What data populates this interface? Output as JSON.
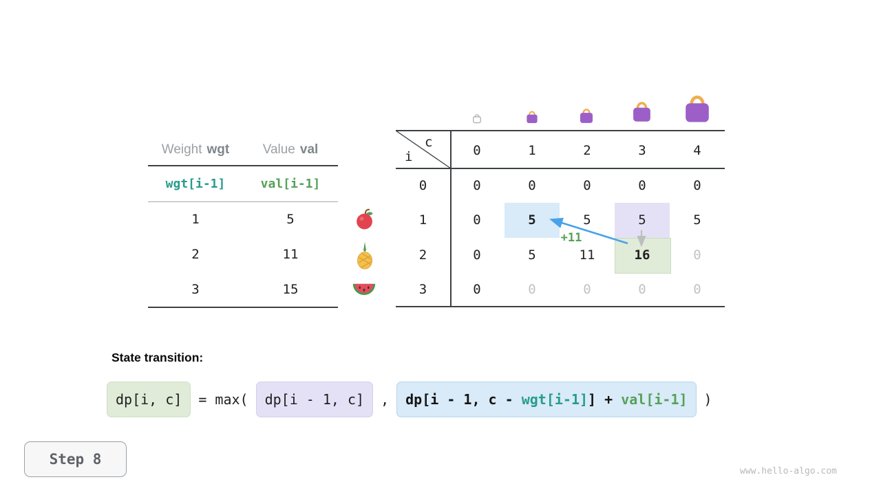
{
  "weights_table": {
    "header": {
      "weight_label": "Weight",
      "weight_code": "wgt",
      "value_label": "Value",
      "value_code": "val"
    },
    "subheader": {
      "wgt": "wgt[i-1]",
      "val": "val[i-1]"
    },
    "rows": [
      {
        "wgt": "1",
        "val": "5"
      },
      {
        "wgt": "2",
        "val": "11"
      },
      {
        "wgt": "3",
        "val": "15"
      }
    ]
  },
  "dp_table": {
    "corner": {
      "col_var": "c",
      "row_var": "i"
    },
    "col_headers": [
      "0",
      "1",
      "2",
      "3",
      "4"
    ],
    "row_headers": [
      "0",
      "1",
      "2",
      "3"
    ],
    "rows": [
      [
        {
          "v": "0"
        },
        {
          "v": "0"
        },
        {
          "v": "0"
        },
        {
          "v": "0"
        },
        {
          "v": "0"
        }
      ],
      [
        {
          "v": "0"
        },
        {
          "v": "5",
          "hl": "blue",
          "bold": true
        },
        {
          "v": "5"
        },
        {
          "v": "5",
          "hl": "purple"
        },
        {
          "v": "5"
        }
      ],
      [
        {
          "v": "0"
        },
        {
          "v": "5"
        },
        {
          "v": "11"
        },
        {
          "v": "16",
          "hl": "green",
          "bold": true
        },
        {
          "v": "0",
          "muted": true
        }
      ],
      [
        {
          "v": "0"
        },
        {
          "v": "0",
          "muted": true
        },
        {
          "v": "0",
          "muted": true
        },
        {
          "v": "0",
          "muted": true
        },
        {
          "v": "0",
          "muted": true
        }
      ]
    ],
    "transition_label": "+11",
    "row_icons": [
      "apple",
      "pineapple",
      "watermelon"
    ],
    "col_icons": [
      "bag-outline",
      "bag-small",
      "bag-medium",
      "bag-large",
      "bag-xlarge"
    ]
  },
  "formula": {
    "title": "State transition:",
    "lhs": "dp[i, c]",
    "equals": "= max(",
    "arg1": "dp[i - 1, c]",
    "separator": ",",
    "arg2_segments": [
      {
        "text": "dp[i - 1, c - ",
        "color": "dark"
      },
      {
        "text": "wgt[i-1]",
        "color": "teal"
      },
      {
        "text": "] + ",
        "color": "dark"
      },
      {
        "text": "val[i-1]",
        "color": "green"
      }
    ],
    "close": ")"
  },
  "step": {
    "label": "Step 8"
  },
  "watermark": "www.hello-algo.com",
  "colors": {
    "teal": "#279c8c",
    "green": "#55a158",
    "arrow_blue": "#47a2e9",
    "arrow_gray": "#bdbdbd",
    "highlight_blue": "#d9eaf8",
    "highlight_purple": "#e4e1f6",
    "highlight_green": "#e0ebd8",
    "bag_purple": "#9c5fc7",
    "bag_handle": "#efae4e"
  }
}
